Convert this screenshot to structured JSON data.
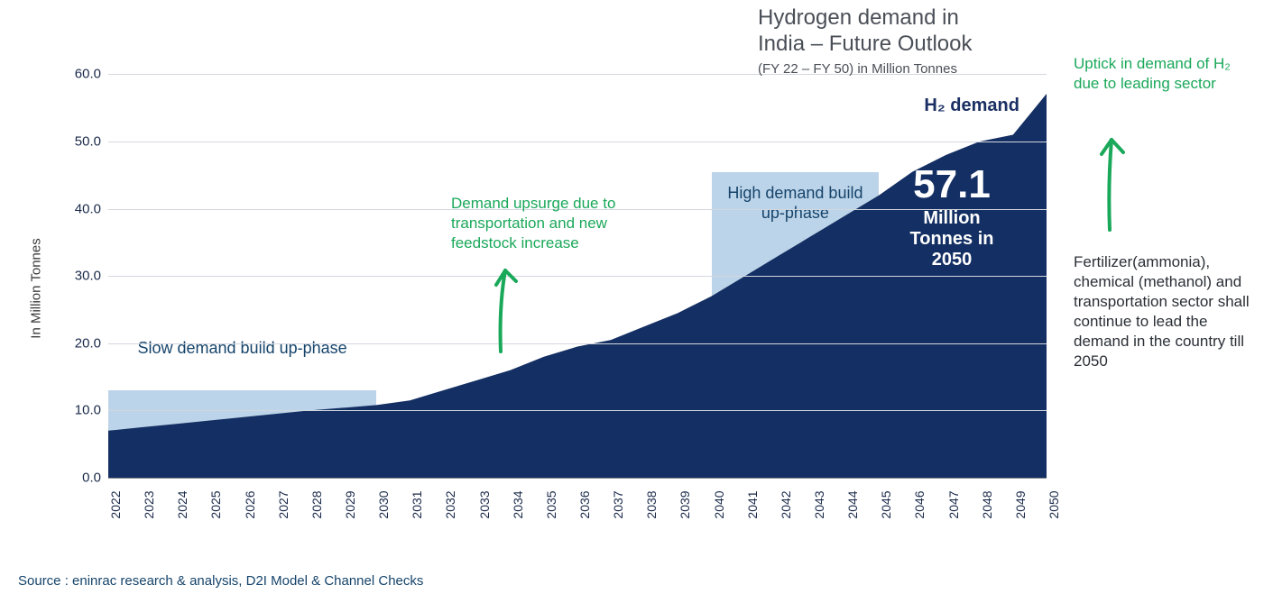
{
  "chart": {
    "type": "area",
    "series_label": "H₂ demand",
    "years": [
      2022,
      2023,
      2024,
      2025,
      2026,
      2027,
      2028,
      2029,
      2030,
      2031,
      2032,
      2033,
      2034,
      2035,
      2036,
      2037,
      2038,
      2039,
      2040,
      2041,
      2042,
      2043,
      2044,
      2045,
      2046,
      2047,
      2048,
      2049,
      2050
    ],
    "values": [
      7.0,
      7.5,
      8.0,
      8.5,
      9.0,
      9.5,
      10.0,
      10.4,
      10.8,
      11.5,
      13.0,
      14.5,
      16.0,
      18.0,
      19.5,
      20.5,
      22.5,
      24.5,
      27.0,
      30.0,
      33.0,
      36.0,
      39.0,
      42.0,
      45.5,
      48.0,
      50.0,
      51.0,
      57.1
    ],
    "area_color": "#142f63",
    "y_label": "In Million Tonnes",
    "y_ticks": [
      "0.0",
      "10.0",
      "20.0",
      "30.0",
      "40.0",
      "50.0",
      "60.0"
    ],
    "y_tick_values": [
      0,
      10,
      20,
      30,
      40,
      50,
      60
    ],
    "ylim": [
      0,
      63
    ],
    "grid_color": "#d3d7de",
    "background": "#ffffff",
    "tick_font_size": 15,
    "label_font_size": 15,
    "phase_box_color": "#a5c5e2",
    "phases": [
      {
        "x_start": 2022,
        "x_end": 2030,
        "height_value": 13.0,
        "label": "Slow demand build up-phase"
      },
      {
        "x_start": 2040,
        "x_end": 2045,
        "height_value": 45.5,
        "label": "High demand build up-phase"
      }
    ],
    "callout": {
      "value": "57.1",
      "sub1": "Million",
      "sub2": "Tonnes in",
      "sub3": "2050",
      "color": "#ffffff"
    }
  },
  "annotations": {
    "green1": "Demand upsurge due to transportation and new feedstock increase",
    "green2": "Uptick in demand of H₂ due to leading sector",
    "dark": "Fertilizer(ammonia), chemical (methanol) and transportation sector shall continue to lead the demand in the country till 2050",
    "arrow_color": "#1aa85a"
  },
  "title": {
    "line1": "Hydrogen demand in",
    "line2": "India – Future Outlook",
    "subtitle": "(FY 22 – FY 50) in Million Tonnes",
    "color": "#4a4f57"
  },
  "source": "Source : eninrac research & analysis, D2I Model & Channel Checks"
}
